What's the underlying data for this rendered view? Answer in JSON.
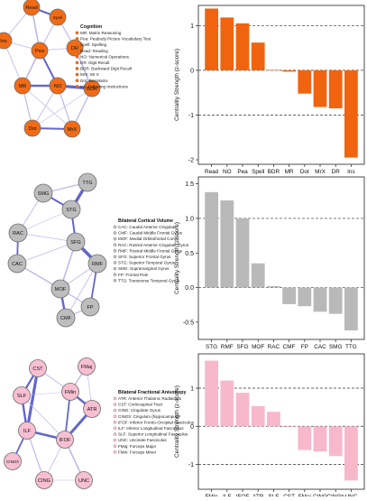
{
  "colors": {
    "cognition": "#f0640f",
    "cognition_node": "#f26b14",
    "volume": "#b9b9b9",
    "volume_node": "#bdbdbd",
    "fa": "#f7b8cc",
    "fa_node": "#f7bfd1",
    "edge_blue": "#5357c7",
    "edge_light": "#b7b2e6"
  },
  "panels": [
    {
      "id": "cognition",
      "legend_title": "Cognition",
      "legend_items": [
        "MR: Matrix Reasoning",
        "Pea: Peabody Picture Vocabulary Test",
        "Spell: Spelling",
        "Read: Reading",
        "NO: Numerical Operations",
        "DR: Digit Recall",
        "BDR: Backward Digit Recall",
        "MrX: Mr X",
        "Dot: Dot Matrix",
        "Ins: Following Instructions"
      ],
      "nodes": [
        "Read",
        "Spell",
        "Ins",
        "Pea",
        "DR",
        "MR",
        "NO",
        "BDR",
        "Dot",
        "MrX"
      ]
    },
    {
      "id": "volume",
      "legend_title": "Bilateral Cortical Volume",
      "legend_items": [
        "CAC: Caudal Anterior Cingulate",
        "CMF: Caudal Middle Frontal Gyrus",
        "MOF: Medial Orbitofrontal Cortex",
        "RAC: Rostral Anterior Cingulate Gyrus",
        "RMF: Rostral Middle Frontal Gyrus",
        "SFG: Superior Frontal Gyrus",
        "STG: Superior Temporal Gyrus",
        "SMG: Supramarginal Gyrus",
        "FP: Frontal Pole",
        "TTG: Transverse Temporal Gyrus"
      ],
      "nodes": [
        "SMG",
        "TTG",
        "STG",
        "RAC",
        "SFG",
        "CAC",
        "RMF",
        "MOF",
        "FP",
        "CMF"
      ]
    },
    {
      "id": "fa",
      "legend_title": "Bilateral Fractional Anisotropy",
      "legend_items": [
        "ATR: Anterior Thalamic Radiations",
        "CST: Corticospinal Tract",
        "CING: Cingulate Gyrus",
        "CINGh: Cingulum (hippocampus)",
        "IFOF: Inferior Fronto-Occipital Fasciculus",
        "ILF: Inferior Longitudinal Fasciculus",
        "SLF: Superior Longitudinal Fasciculus",
        "UNC: Uncinate Fasciculus",
        "FMaj: Forceps Major",
        "FMin: Forceps Minor"
      ],
      "nodes": [
        "FMaj",
        "CST",
        "FMin",
        "SLF",
        "ATR",
        "ILF",
        "IFOF",
        "CINGh",
        "CING",
        "UNC"
      ]
    }
  ],
  "chart_data": [
    {
      "type": "bar",
      "ylabel": "Centrality Strength (z-score)",
      "xlabel": "",
      "ylim": [
        -2.1,
        1.45
      ],
      "yticks": [
        -2,
        -1,
        0,
        1
      ],
      "dashed_lines": [
        -1,
        0,
        1
      ],
      "categories": [
        "Read",
        "NO",
        "Pea",
        "Spell",
        "BDR",
        "MR",
        "Dot",
        "MrX",
        "DR",
        "Ins"
      ],
      "values": [
        1.38,
        1.18,
        1.05,
        0.62,
        0.01,
        -0.03,
        -0.52,
        -0.82,
        -0.85,
        -1.95
      ]
    },
    {
      "type": "bar",
      "ylabel": "Centrality Strength (z-score)",
      "xlabel": "",
      "ylim": [
        -0.75,
        1.6
      ],
      "yticks": [
        -0.5,
        0.0,
        0.5,
        1.0,
        1.5
      ],
      "dashed_lines": [
        0,
        1
      ],
      "categories": [
        "STG",
        "RMF",
        "SFG",
        "MOF",
        "RAC",
        "CMF",
        "FP",
        "CAC",
        "SMG",
        "TTG"
      ],
      "values": [
        1.38,
        1.26,
        1.0,
        0.35,
        0.02,
        -0.24,
        -0.27,
        -0.35,
        -0.38,
        -0.62
      ]
    },
    {
      "type": "bar",
      "ylabel": "Centrality Strength (z-score)",
      "xlabel": "",
      "ylim": [
        -1.65,
        1.9
      ],
      "yticks": [
        -1,
        0,
        1
      ],
      "dashed_lines": [
        -1,
        0,
        1
      ],
      "categories": [
        "FMin",
        "ILF",
        "IFOF",
        "ATR",
        "SLF",
        "CST",
        "FMaj",
        "CING",
        "CINGh",
        "UNC"
      ],
      "values": [
        1.72,
        1.2,
        0.88,
        0.53,
        0.38,
        -0.02,
        -0.62,
        -0.66,
        -0.78,
        -1.42
      ]
    }
  ]
}
